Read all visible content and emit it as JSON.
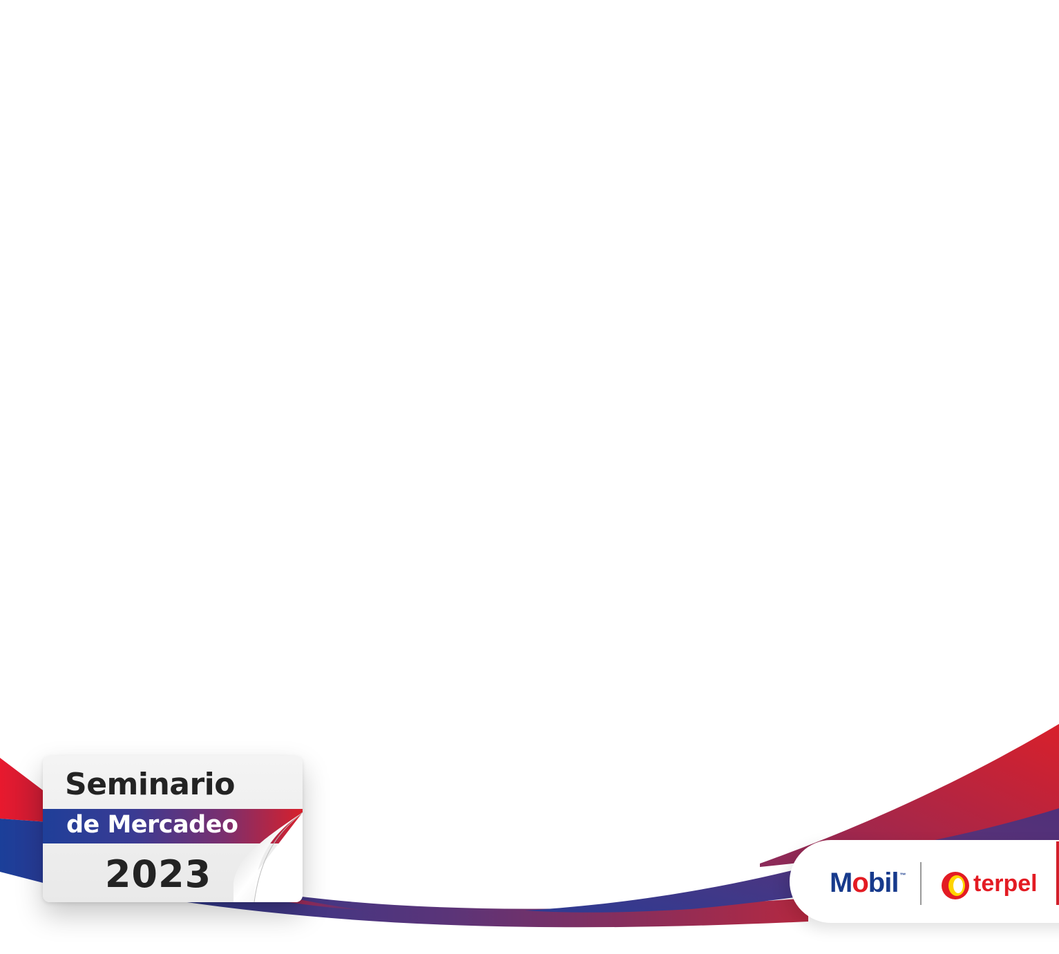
{
  "badge": {
    "line1": "Seminario",
    "line2": "de Mercadeo",
    "year": "2023"
  },
  "logos": {
    "mobil_parts": [
      "M",
      "o",
      "bil"
    ],
    "mobil_tm": "™",
    "terpel": "terpel"
  },
  "colors": {
    "brand_blue": "#173a8c",
    "brand_red": "#e31b23",
    "band_purple": "#7b2f6e"
  }
}
